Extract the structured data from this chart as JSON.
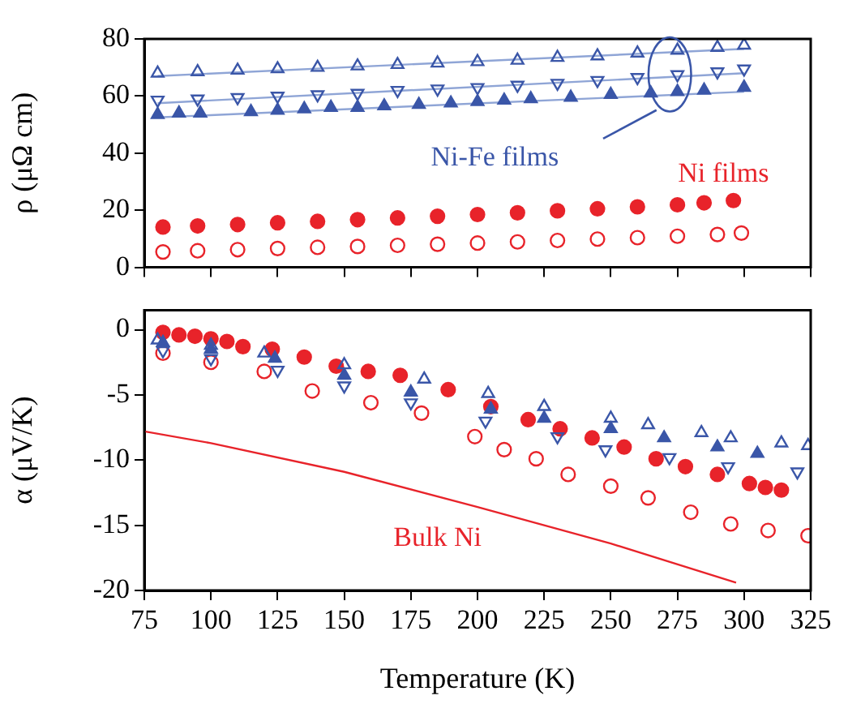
{
  "chart_data": [
    {
      "type": "scatter",
      "ylabel": "ρ (μΩ cm)",
      "xlim": [
        75,
        325
      ],
      "xticks": [
        75,
        100,
        125,
        150,
        175,
        200,
        225,
        250,
        275,
        300,
        325
      ],
      "ylim": [
        0,
        80
      ],
      "yticks": [
        0,
        20,
        40,
        60,
        80
      ],
      "tick_labels": "y",
      "grid": false,
      "legend": false,
      "series": [
        {
          "color": "#3a56a8",
          "marker": "triangle",
          "x": [
            80,
            95,
            110,
            125,
            140,
            155,
            170,
            185,
            200,
            215,
            230,
            245,
            260,
            275,
            290,
            300
          ],
          "values": [
            68,
            68.5,
            69,
            69.5,
            70,
            70.5,
            71,
            71.5,
            72,
            72.5,
            73.5,
            74,
            75,
            76,
            77,
            77.8
          ]
        },
        {
          "color": "#3a56a8",
          "marker": "triangle_down",
          "x": [
            80,
            95,
            110,
            125,
            140,
            155,
            170,
            185,
            200,
            215,
            230,
            245,
            260,
            275,
            290,
            300
          ],
          "values": [
            58.6,
            59,
            59.5,
            60,
            60.5,
            61,
            62,
            62.5,
            63,
            63.8,
            64.5,
            65.5,
            66.5,
            67.5,
            68.5,
            69.5
          ]
        },
        {
          "color": "#3a56a8",
          "marker": "triangle",
          "x": [
            80,
            88,
            96,
            115,
            125,
            135,
            145,
            155,
            165,
            178,
            190,
            200,
            210,
            220,
            235,
            250,
            265,
            275,
            285,
            300
          ],
          "values": [
            53.5,
            54,
            54,
            54.5,
            55,
            55.5,
            56,
            56,
            56.5,
            57,
            57.5,
            58,
            58.5,
            59,
            59.5,
            60.5,
            61,
            61.5,
            62,
            63
          ]
        },
        {
          "color": "#e8232a",
          "marker": "circle",
          "x": [
            82,
            95,
            110,
            125,
            140,
            155,
            170,
            185,
            200,
            215,
            230,
            245,
            260,
            275,
            285,
            296
          ],
          "values": [
            14.1,
            14.5,
            15,
            15.6,
            16.1,
            16.7,
            17.3,
            17.9,
            18.5,
            19.1,
            19.8,
            20.5,
            21.2,
            21.9,
            22.6,
            23.4
          ]
        },
        {
          "color": "#e8232a",
          "marker": "circle",
          "x": [
            82,
            95,
            110,
            125,
            140,
            155,
            170,
            185,
            200,
            215,
            230,
            245,
            260,
            275,
            290,
            299
          ],
          "values": [
            5.4,
            5.8,
            6.2,
            6.6,
            7,
            7.3,
            7.7,
            8.1,
            8.5,
            8.9,
            9.4,
            9.9,
            10.4,
            10.9,
            11.5,
            12
          ]
        },
        {
          "type": "line",
          "color": "#8fa5d6",
          "marker": "none",
          "x": [
            80,
            300
          ],
          "values": [
            67,
            76.5
          ]
        },
        {
          "type": "line",
          "color": "#8fa5d6",
          "marker": "none",
          "x": [
            80,
            300
          ],
          "values": [
            57.5,
            68
          ]
        },
        {
          "type": "line",
          "color": "#8fa5d6",
          "marker": "none",
          "x": [
            80,
            300
          ],
          "values": [
            52.5,
            61.5
          ]
        }
      ],
      "annotations": [
        "Ni-Fe films",
        "Ni films"
      ]
    },
    {
      "type": "scatter",
      "xlabel": "Temperature (K)",
      "ylabel": "α (μV/K)",
      "xlim": [
        75,
        325
      ],
      "xticks": [
        75,
        100,
        125,
        150,
        175,
        200,
        225,
        250,
        275,
        300,
        325
      ],
      "ylim": [
        -20,
        1.5
      ],
      "yticks": [
        -20,
        -15,
        -10,
        -5,
        0
      ],
      "grid": false,
      "legend": false,
      "series": [
        {
          "color": "#3a56a8",
          "marker": "triangle",
          "x": [
            80,
            100,
            120,
            150,
            180,
            204,
            225,
            250,
            264,
            284,
            295,
            314,
            324
          ],
          "values": [
            -0.8,
            -1.2,
            -1.8,
            -2.7,
            -3.8,
            -4.9,
            -5.9,
            -6.8,
            -7.3,
            -7.9,
            -8.3,
            -8.7,
            -8.9
          ]
        },
        {
          "color": "#3a56a8",
          "marker": "triangle",
          "x": [
            82,
            100,
            124,
            150,
            175,
            205,
            225,
            250,
            270,
            290,
            305
          ],
          "values": [
            -1,
            -1.5,
            -2.2,
            -3.5,
            -4.8,
            -6.1,
            -6.8,
            -7.6,
            -8.3,
            -9,
            -9.5
          ]
        },
        {
          "color": "#3a56a8",
          "marker": "triangle_down",
          "x": [
            82,
            100,
            125,
            150,
            175,
            203,
            230,
            248,
            272,
            294,
            320
          ],
          "values": [
            -1.6,
            -2.2,
            -3.1,
            -4.3,
            -5.6,
            -7,
            -8.2,
            -9.2,
            -9.8,
            -10.5,
            -10.9
          ]
        },
        {
          "color": "#e8232a",
          "marker": "circle",
          "x": [
            82,
            88,
            94,
            100,
            106,
            112,
            123,
            135,
            147,
            159,
            171,
            189,
            205,
            219,
            231,
            243,
            255,
            267,
            278,
            290,
            302,
            308,
            314
          ],
          "values": [
            -0.2,
            -0.4,
            -0.5,
            -0.7,
            -0.9,
            -1.3,
            -1.5,
            -2.1,
            -2.8,
            -3.2,
            -3.5,
            -4.6,
            -5.9,
            -6.9,
            -7.6,
            -8.3,
            -9,
            -9.9,
            -10.5,
            -11.1,
            -11.8,
            -12.1,
            -12.3
          ]
        },
        {
          "color": "#e8232a",
          "marker": "circle",
          "x": [
            82,
            100,
            120,
            138,
            160,
            179,
            199,
            210,
            222,
            234,
            250,
            264,
            280,
            295,
            309,
            324
          ],
          "values": [
            -1.8,
            -2.5,
            -3.2,
            -4.7,
            -5.6,
            -6.4,
            -8.2,
            -9.2,
            -9.9,
            -11.1,
            -12,
            -12.9,
            -14,
            -14.9,
            -15.4,
            -15.8
          ]
        },
        {
          "type": "line",
          "color": "#e8232a",
          "marker": "none",
          "x": [
            75,
            100,
            150,
            200,
            250,
            297
          ],
          "values": [
            -7.8,
            -8.7,
            -10.9,
            -13.6,
            -16.4,
            -19.4
          ]
        }
      ],
      "annotations": [
        "Bulk Ni"
      ]
    }
  ]
}
